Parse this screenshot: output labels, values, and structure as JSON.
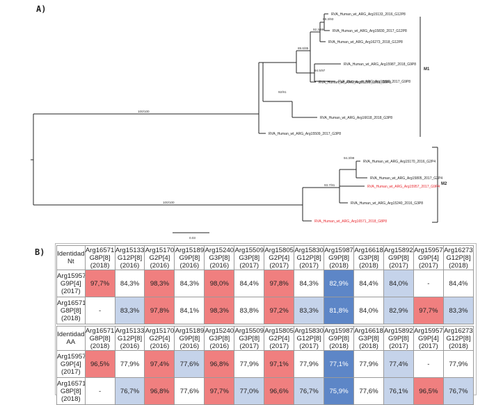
{
  "panels": {
    "a_label": "A)",
    "b_label": "B)"
  },
  "tree": {
    "leaves": [
      "RVA_Human_wt_ARG_Arg15133_2016_G12P8",
      "RVA_Human_wt_ARG_Arg15830_2017_G12P8",
      "RVA_Human_wt_ARG_Arg16273_2018_G12P8",
      "RVA_Human_wt_ARG_Arg15987_2018_G9P8",
      "RVA_Human_wt_ARG_Arg15892_2017_G9P8",
      "RVA_Human_wt_ARG_Arg15189_2016_G9P8",
      "RVA_Human_wt_ARG_Arg16618_2018_G3P8",
      "RVA_Human_wt_ARG_Arg15509_2017_G3P8",
      "RVA_Human_wt_ARG_Arg15170_2016_G2P4",
      "RVA_Human_wt_ARG_Arg15805_2017_G2P4",
      "RVA_Human_wt_ARG_Arg15957_2017_G9P4",
      "RVA_Human_wt_ARG_Arg15240_2016_G3P8",
      "RVA_Human_wt_ARG_Arg16571_2018_G8P8"
    ],
    "highlight_color": "#e8242b",
    "bootstrap": [
      "88.3/93",
      "92.3/99",
      "89.6/85",
      "94.5/97",
      "92/91",
      "100/100",
      "94.3/99",
      "93.7/91",
      "100/100"
    ],
    "clusters": [
      "M1",
      "M2"
    ],
    "scale_label": "0.03"
  },
  "tables": {
    "headers": [
      "Arg16571 G8P[8] (2018)",
      "Arg15133 G12P[8] (2016)",
      "Arg15170 G2P[4] (2016)",
      "Arg15189 G9P[8] (2016)",
      "Arg15240 G3P[8] (2016)",
      "Arg15509 G3P[8] (2017)",
      "Arg15805 G2P[4] (2017)",
      "Arg15830 G12P[8] (2017)",
      "Arg15987 G9P[8] (2018)",
      "Arg16618 G3P[8] (2018)",
      "Arg15892 G9P[8] (2017)",
      "Arg15957 G9P[4] (2017)",
      "Arg16273 G12P[8] (2018)"
    ],
    "nt": {
      "corner": "Identidad Nt",
      "rows": [
        {
          "label": "Arg15957 G9P[4] (2017)",
          "values": [
            "97,7%",
            "84,3%",
            "98,3%",
            "84,3%",
            "98,0%",
            "84,4%",
            "97,8%",
            "84,3%",
            "82,9%",
            "84,4%",
            "84,0%",
            "-",
            "84,4%"
          ],
          "shades": [
            "red",
            "none",
            "red",
            "none",
            "red",
            "none",
            "red",
            "none",
            "blue",
            "none",
            "light",
            "none",
            "none"
          ]
        },
        {
          "label": "Arg16571 G8P[8] (2018)",
          "values": [
            "-",
            "83,3%",
            "97,8%",
            "84,1%",
            "98,3%",
            "83,8%",
            "97,2%",
            "83,3%",
            "81,8%",
            "84,0%",
            "82,9%",
            "97,7%",
            "83,3%"
          ],
          "shades": [
            "none",
            "light",
            "red",
            "none",
            "red",
            "none",
            "red",
            "light",
            "blue",
            "none",
            "light",
            "red",
            "light"
          ]
        }
      ]
    },
    "aa": {
      "corner": "Identidad AA",
      "rows": [
        {
          "label": "Arg15957 G9P[4] (2017)",
          "values": [
            "96,5%",
            "77,9%",
            "97,4%",
            "77,6%",
            "96,8%",
            "77,9%",
            "97,1%",
            "77,9%",
            "77,1%",
            "77,9%",
            "77,4%",
            "-",
            "77,9%"
          ],
          "shades": [
            "red",
            "none",
            "red",
            "light",
            "red",
            "none",
            "red",
            "none",
            "blue",
            "none",
            "light",
            "none",
            "none"
          ]
        },
        {
          "label": "Arg16571 G8P[8] (2018)",
          "values": [
            "-",
            "76,7%",
            "96,8%",
            "77,6%",
            "97,7%",
            "77,0%",
            "96,6%",
            "76,7%",
            "75,9%",
            "77,6%",
            "76,1%",
            "96,5%",
            "76,7%"
          ],
          "shades": [
            "none",
            "light",
            "red",
            "none",
            "red",
            "light",
            "red",
            "light",
            "blue",
            "none",
            "light",
            "red",
            "light"
          ]
        }
      ]
    }
  }
}
